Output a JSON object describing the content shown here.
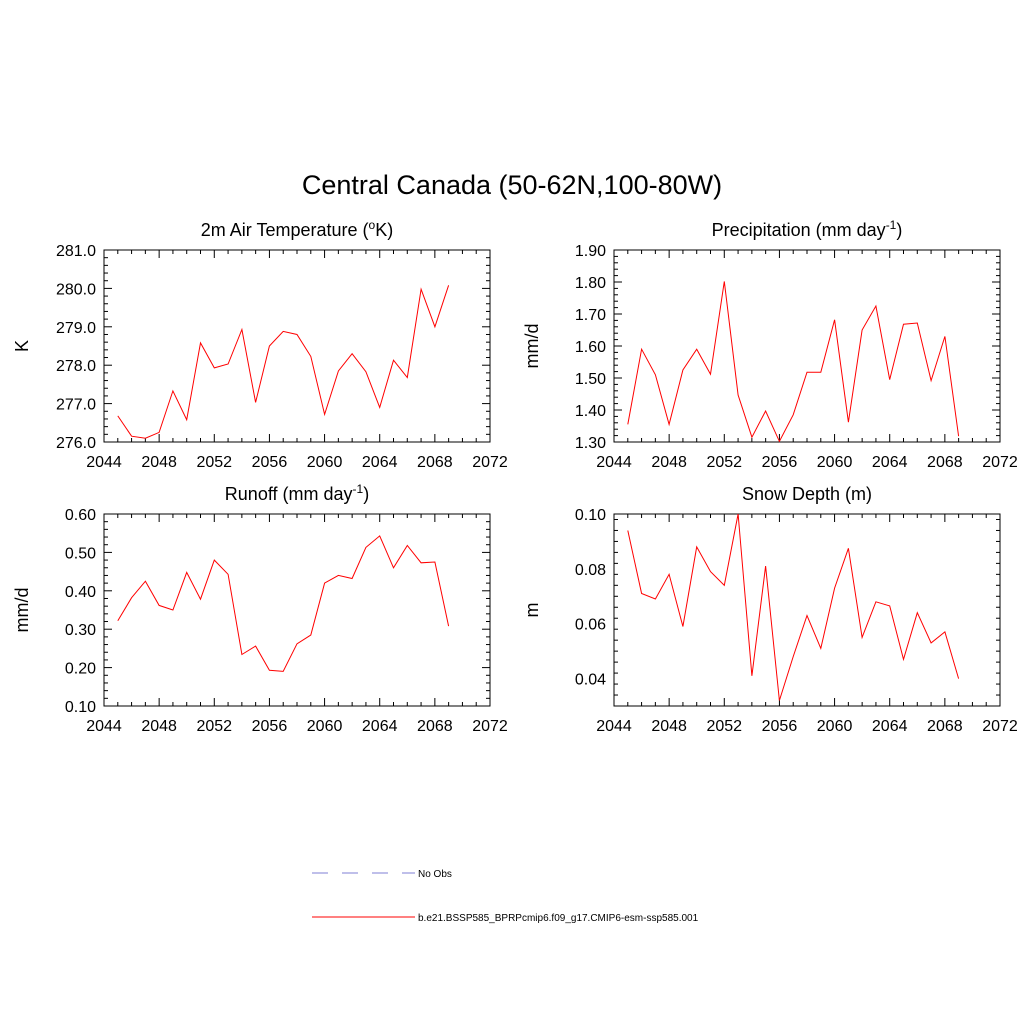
{
  "page_title": "Central Canada (50-62N,100-80W)",
  "legend": {
    "obs_label": "No Obs",
    "model_label": "b.e21.BSSP585_BPRPcmip6.f09_g17.CMIP6-esm-ssp585.001",
    "obs_color": "#9999dd",
    "model_color": "#ff0000"
  },
  "chart_data": [
    {
      "type": "line",
      "title": "2m Air Temperature (",
      "title_sup": "o",
      "title_tail": "K)",
      "ylabel": "K",
      "xlim": [
        2044,
        2072
      ],
      "ylim": [
        276.0,
        281.0
      ],
      "xticks": [
        "2044",
        "2048",
        "2052",
        "2056",
        "2060",
        "2064",
        "2068",
        "2072"
      ],
      "yticks": [
        "276.0",
        "277.0",
        "278.0",
        "279.0",
        "280.0",
        "281.0"
      ],
      "series": [
        {
          "color": "#ff0000",
          "x": [
            2045,
            2046,
            2047,
            2048,
            2049,
            2050,
            2051,
            2052,
            2053,
            2054,
            2055,
            2056,
            2057,
            2058,
            2059,
            2060,
            2061,
            2062,
            2063,
            2064,
            2065,
            2066,
            2067,
            2068,
            2069
          ],
          "y": [
            276.68,
            276.15,
            276.1,
            276.25,
            277.33,
            276.58,
            278.58,
            277.93,
            278.03,
            278.93,
            277.03,
            278.5,
            278.88,
            278.8,
            278.23,
            276.72,
            277.85,
            278.3,
            277.83,
            276.9,
            278.13,
            277.68,
            279.98,
            279.0,
            280.08
          ]
        }
      ]
    },
    {
      "type": "line",
      "title": "Precipitation (mm day",
      "title_sup": "-1",
      "title_tail": ")",
      "ylabel": "mm/d",
      "xlim": [
        2044,
        2072
      ],
      "ylim": [
        1.3,
        1.9
      ],
      "xticks": [
        "2044",
        "2048",
        "2052",
        "2056",
        "2060",
        "2064",
        "2068",
        "2072"
      ],
      "yticks": [
        "1.30",
        "1.40",
        "1.50",
        "1.60",
        "1.70",
        "1.80",
        "1.90"
      ],
      "series": [
        {
          "color": "#ff0000",
          "x": [
            2045,
            2046,
            2047,
            2048,
            2049,
            2050,
            2051,
            2052,
            2053,
            2054,
            2055,
            2056,
            2057,
            2058,
            2059,
            2060,
            2061,
            2062,
            2063,
            2064,
            2065,
            2066,
            2067,
            2068,
            2069
          ],
          "y": [
            1.355,
            1.59,
            1.51,
            1.355,
            1.525,
            1.59,
            1.512,
            1.802,
            1.447,
            1.315,
            1.397,
            1.302,
            1.385,
            1.518,
            1.518,
            1.682,
            1.362,
            1.65,
            1.725,
            1.495,
            1.668,
            1.672,
            1.492,
            1.63,
            1.318
          ]
        }
      ]
    },
    {
      "type": "line",
      "title": "Runoff (mm day",
      "title_sup": "-1",
      "title_tail": ")",
      "ylabel": "mm/d",
      "xlim": [
        2044,
        2072
      ],
      "ylim": [
        0.1,
        0.6
      ],
      "xticks": [
        "2044",
        "2048",
        "2052",
        "2056",
        "2060",
        "2064",
        "2068",
        "2072"
      ],
      "yticks": [
        "0.10",
        "0.20",
        "0.30",
        "0.40",
        "0.50",
        "0.60"
      ],
      "series": [
        {
          "color": "#ff0000",
          "x": [
            2045,
            2046,
            2047,
            2048,
            2049,
            2050,
            2051,
            2052,
            2053,
            2054,
            2055,
            2056,
            2057,
            2058,
            2059,
            2060,
            2061,
            2062,
            2063,
            2064,
            2065,
            2066,
            2067,
            2068,
            2069
          ],
          "y": [
            0.322,
            0.382,
            0.425,
            0.362,
            0.35,
            0.448,
            0.378,
            0.48,
            0.443,
            0.234,
            0.256,
            0.193,
            0.19,
            0.262,
            0.285,
            0.42,
            0.44,
            0.432,
            0.513,
            0.543,
            0.46,
            0.518,
            0.473,
            0.475,
            0.308
          ]
        }
      ]
    },
    {
      "type": "line",
      "title": "Snow Depth (m)",
      "title_sup": "",
      "title_tail": "",
      "ylabel": "m",
      "xlim": [
        2044,
        2072
      ],
      "ylim": [
        0.03,
        0.1
      ],
      "xticks": [
        "2044",
        "2048",
        "2052",
        "2056",
        "2060",
        "2064",
        "2068",
        "2072"
      ],
      "yticks": [
        "0.04",
        "0.06",
        "0.08",
        "0.10"
      ],
      "ytick_values": [
        0.04,
        0.06,
        0.08,
        0.1
      ],
      "series": [
        {
          "color": "#ff0000",
          "x": [
            2045,
            2046,
            2047,
            2048,
            2049,
            2050,
            2051,
            2052,
            2053,
            2054,
            2055,
            2056,
            2057,
            2058,
            2059,
            2060,
            2061,
            2062,
            2063,
            2064,
            2065,
            2066,
            2067,
            2068,
            2069
          ],
          "y": [
            0.094,
            0.071,
            0.069,
            0.078,
            0.059,
            0.088,
            0.079,
            0.074,
            0.1,
            0.041,
            0.081,
            0.032,
            0.048,
            0.063,
            0.051,
            0.073,
            0.0875,
            0.055,
            0.068,
            0.0665,
            0.047,
            0.064,
            0.053,
            0.057,
            0.04
          ]
        }
      ]
    }
  ]
}
